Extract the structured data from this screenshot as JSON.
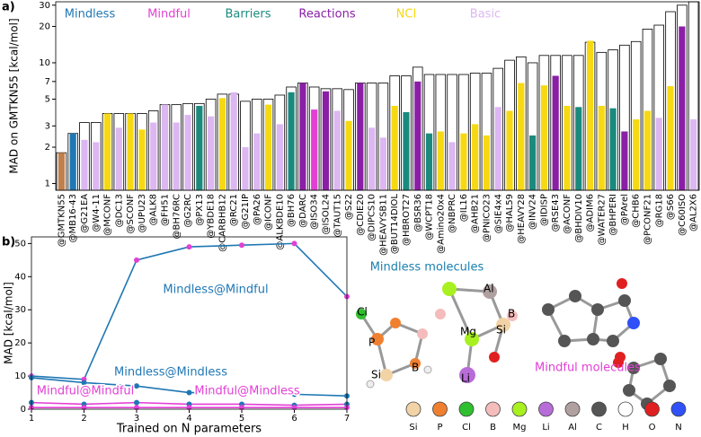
{
  "chart_data": [
    {
      "type": "bar",
      "panel_label": "a)",
      "ylabel": "MAD on GMTKN55 [kcal/mol]",
      "log_scale": true,
      "ylim": [
        0.88,
        32
      ],
      "yticks": [
        1,
        2,
        3,
        5,
        7,
        10,
        20,
        30
      ],
      "categories": [
        "@GMTKN55",
        "@MB16-43",
        "@G21EA",
        "@W4-11",
        "@MCONF",
        "@DC13",
        "@SCONF",
        "@UPU23",
        "@ALK8",
        "@FH51",
        "@BH76RC",
        "@G2RC",
        "@PX13",
        "@YBDE18",
        "@CARBHB12",
        "@RC21",
        "@G21IP",
        "@PA26",
        "@ICONF",
        "@ALKBDE10",
        "@BH76",
        "@DARC",
        "@ISO34",
        "@ISOL24",
        "@TAUT15",
        "@S22",
        "@CDIE20",
        "@DIPCS10",
        "@HEAVYSB11",
        "@BUT14DIOL",
        "@HBROT27",
        "@BSR36",
        "@WCPT18",
        "@Amino20x4",
        "@NBPRC",
        "@IL16",
        "@AHB21",
        "@PNICO23",
        "@SIE4x4",
        "@HAL59",
        "@HEAVY28",
        "@INV24",
        "@IDISP",
        "@RSE43",
        "@ACONF",
        "@BHDIV10",
        "@ADIM6",
        "@WATER27",
        "@BHPERI",
        "@PArel",
        "@CHB6",
        "@PCONF21",
        "@RG18",
        "@S66",
        "@C60ISO",
        "@AL2X6"
      ],
      "values": [
        1.8,
        2.6,
        3.2,
        3.2,
        3.8,
        3.8,
        3.8,
        3.8,
        4.0,
        4.5,
        4.5,
        4.6,
        4.6,
        5.0,
        5.5,
        5.5,
        4.8,
        5.0,
        5.0,
        5.4,
        6.3,
        6.8,
        6.3,
        6.1,
        6.1,
        6.0,
        6.8,
        6.8,
        6.8,
        7.8,
        7.8,
        9.2,
        8.0,
        8.0,
        8.0,
        8.0,
        8.2,
        8.2,
        9.0,
        10.5,
        11.2,
        10.0,
        11.5,
        11.5,
        11.5,
        11.5,
        14.8,
        12.2,
        12.8,
        14.0,
        15.0,
        19.0,
        20.5,
        26.5,
        30.0,
        32
      ],
      "subset_values": [
        1.8,
        2.6,
        2.3,
        2.2,
        3.8,
        2.9,
        3.8,
        2.8,
        3.2,
        4.5,
        3.2,
        3.7,
        4.4,
        3.6,
        5.1,
        5.7,
        2.0,
        2.6,
        4.5,
        3.1,
        5.7,
        6.8,
        4.1,
        5.8,
        4.0,
        3.3,
        6.8,
        2.9,
        2.4,
        4.4,
        3.9,
        7.0,
        2.6,
        2.7,
        2.2,
        2.6,
        3.1,
        2.5,
        4.3,
        4.0,
        6.8,
        2.5,
        6.5,
        7.8,
        4.4,
        4.3,
        15.2,
        4.4,
        4.2,
        2.7,
        3.4,
        4.0,
        3.5,
        6.4,
        20.0,
        3.4
      ],
      "subset_group": [
        6,
        0,
        5,
        5,
        4,
        5,
        4,
        4,
        5,
        5,
        5,
        5,
        2,
        5,
        4,
        5,
        5,
        5,
        4,
        5,
        2,
        3,
        1,
        3,
        5,
        4,
        3,
        5,
        5,
        4,
        2,
        3,
        2,
        4,
        5,
        4,
        4,
        4,
        5,
        4,
        4,
        2,
        4,
        3,
        4,
        2,
        4,
        4,
        2,
        3,
        4,
        4,
        5,
        4,
        3,
        5
      ],
      "groups": [
        {
          "name": "Mindless",
          "color": "#1f77b4"
        },
        {
          "name": "Mindful",
          "color": "#e33fd6"
        },
        {
          "name": "Barriers",
          "color": "#1b8a7e"
        },
        {
          "name": "Reactions",
          "color": "#8a1fa6"
        },
        {
          "name": "NCI",
          "color": "#f6d912"
        },
        {
          "name": "Basic",
          "color": "#dcb7f2"
        },
        {
          "color": "#c0804e"
        }
      ]
    },
    {
      "type": "line",
      "panel_label": "b)",
      "ylabel": "MAD [kcal/mol]",
      "xlabel": "Trained on N parameters",
      "x": [
        1,
        2,
        3,
        4,
        5,
        6,
        7
      ],
      "xlim": [
        1,
        7
      ],
      "xticks": [
        1,
        2,
        3,
        4,
        5,
        6,
        7
      ],
      "ylim": [
        0,
        52
      ],
      "yticks": [
        0,
        10,
        20,
        30,
        40,
        50
      ],
      "series": [
        {
          "name": "Mindless@Mindful",
          "color": "#1f77b4",
          "marker_color": "#e33fd6",
          "values": [
            10,
            9,
            45,
            49,
            49.5,
            50,
            34
          ]
        },
        {
          "name": "Mindless@Mindless",
          "color": "#1f77b4",
          "marker_color": "#1f77b4",
          "values": [
            9.5,
            8,
            7,
            5,
            5,
            4.5,
            4
          ]
        },
        {
          "name": "Mindful@Mindful",
          "color": "#e33fd6",
          "marker_color": "#1f77b4",
          "values": [
            2,
            1.5,
            2,
            1.5,
            1.5,
            1.2,
            1.5
          ]
        },
        {
          "name": "Mindful@Mindless",
          "color": "#e33fd6",
          "marker_color": "#e33fd6",
          "values": [
            0.5,
            0.5,
            0.5,
            0.5,
            0.5,
            0.5,
            0.5
          ]
        }
      ]
    }
  ],
  "illustration": {
    "mindless_title": "Mindless molecules",
    "mindful_title": "Mindful molecules",
    "atom_labels": [
      "Cl",
      "P",
      "Si",
      "B",
      "Al",
      "B",
      "Si",
      "Mg",
      "Li"
    ],
    "legend": [
      {
        "name": "Si",
        "color": "#f2d3a6"
      },
      {
        "name": "P",
        "color": "#f08030"
      },
      {
        "name": "Cl",
        "color": "#2fbf2f"
      },
      {
        "name": "B",
        "color": "#f5bcbc"
      },
      {
        "name": "Mg",
        "color": "#a8f020"
      },
      {
        "name": "Li",
        "color": "#b86cd8"
      },
      {
        "name": "Al",
        "color": "#b0a0a0"
      },
      {
        "name": "C",
        "color": "#555555"
      },
      {
        "name": "H",
        "color": "#ffffff"
      },
      {
        "name": "O",
        "color": "#e02020"
      },
      {
        "name": "N",
        "color": "#3050f8"
      }
    ]
  }
}
